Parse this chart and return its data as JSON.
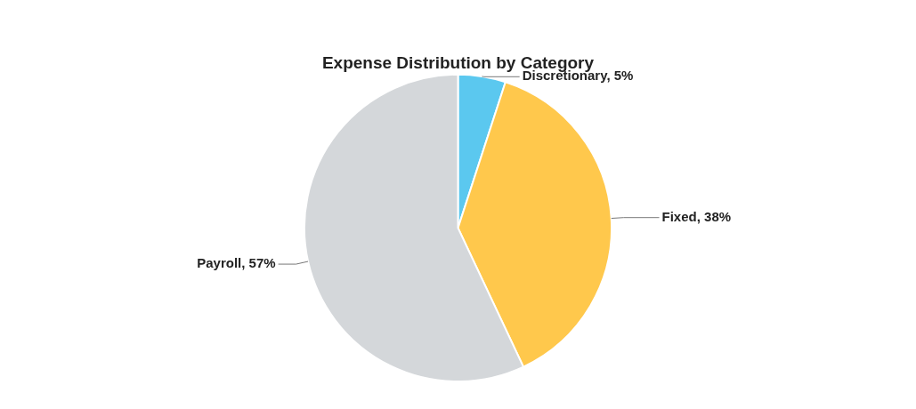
{
  "chart_data": {
    "type": "pie",
    "title": "Expense Distribution by Category",
    "categories": [
      "Discretionary",
      "Fixed",
      "Payroll"
    ],
    "values": [
      5,
      38,
      57
    ],
    "value_labels": [
      "5%",
      "38%",
      "57%"
    ],
    "colors": [
      "#5bc8ef",
      "#ffc84c",
      "#d4d7da"
    ],
    "legend": false
  }
}
